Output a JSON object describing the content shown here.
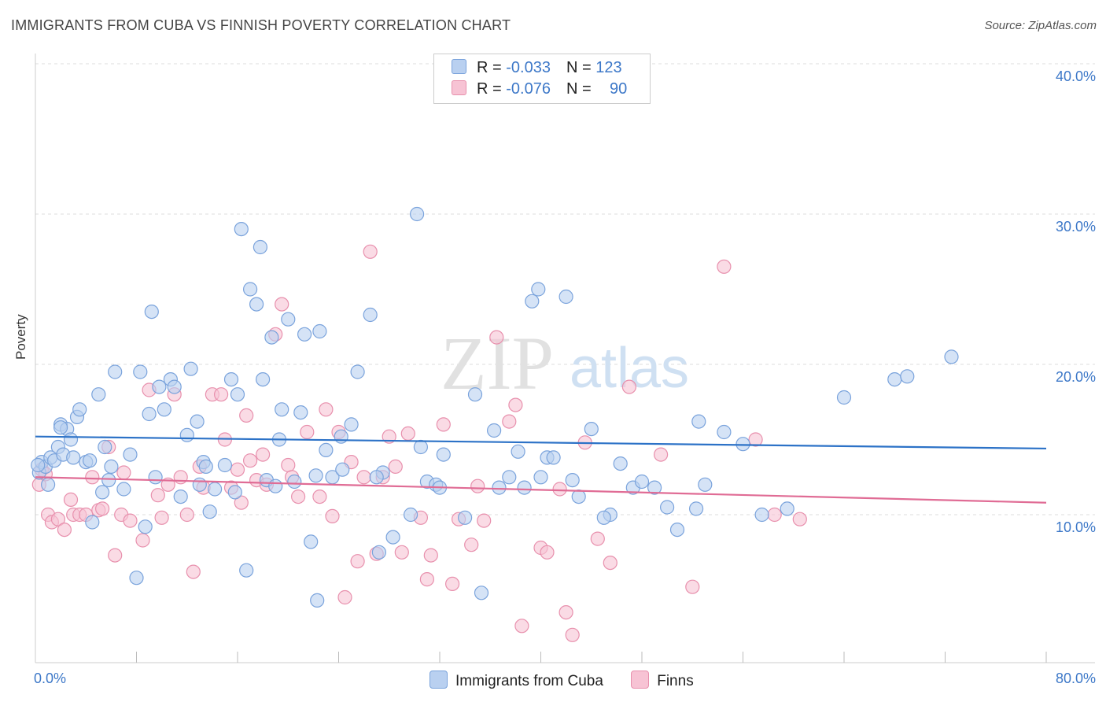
{
  "header": {
    "title": "IMMIGRANTS FROM CUBA VS FINNISH POVERTY CORRELATION CHART",
    "source": "Source: ZipAtlas.com"
  },
  "watermark": {
    "zip": "ZIP",
    "atlas": "atlas"
  },
  "legend": {
    "rows": [
      {
        "r_label": "R = ",
        "r_value": "-0.033",
        "n_label": "N = ",
        "n_value": "123"
      },
      {
        "r_label": "R = ",
        "r_value": "-0.076",
        "n_label": "N = ",
        "n_value": "90"
      }
    ]
  },
  "colors": {
    "series1_fill": "#b9d0f0",
    "series1_edge": "#7aa3dc",
    "series1_line": "#2c72c7",
    "series2_fill": "#f7c3d4",
    "series2_edge": "#e890ad",
    "series2_line": "#e06c95",
    "tick_text": "#3d78c8"
  },
  "chart_data": {
    "type": "scatter",
    "title": "IMMIGRANTS FROM CUBA VS FINNISH POVERTY CORRELATION CHART",
    "xlabel": "",
    "ylabel": "Poverty",
    "xlim": [
      0,
      80
    ],
    "ylim": [
      0,
      42
    ],
    "x_tick_labels": [
      "0.0%",
      "80.0%"
    ],
    "y_ticks": [
      10,
      20,
      30,
      40
    ],
    "y_tick_labels": [
      "10.0%",
      "20.0%",
      "30.0%",
      "40.0%"
    ],
    "grid": true,
    "legend_position": "top-center",
    "series": [
      {
        "name": "Immigrants from Cuba",
        "r": -0.033,
        "n": 123,
        "trend": {
          "x": [
            0,
            80
          ],
          "y": [
            15.2,
            14.4
          ]
        },
        "x": [
          0.3,
          0.5,
          0.8,
          1.0,
          1.2,
          1.5,
          1.8,
          2.0,
          2.2,
          2.5,
          2.8,
          3.0,
          3.3,
          3.5,
          4.0,
          4.5,
          5.0,
          5.3,
          5.5,
          5.8,
          6.0,
          6.3,
          7.0,
          7.5,
          8.0,
          8.3,
          8.7,
          9.2,
          9.5,
          9.8,
          10.2,
          10.7,
          11.0,
          11.5,
          12.0,
          12.3,
          12.8,
          13.3,
          13.5,
          13.8,
          14.2,
          15.0,
          15.5,
          16.0,
          16.3,
          16.7,
          17.0,
          17.5,
          17.8,
          18.3,
          18.7,
          19.0,
          19.3,
          19.5,
          20.0,
          20.5,
          21.0,
          21.3,
          21.8,
          22.3,
          22.5,
          23.0,
          23.5,
          24.2,
          25.0,
          25.5,
          26.5,
          27.2,
          27.5,
          28.3,
          29.7,
          30.2,
          30.5,
          31.0,
          31.7,
          32.3,
          34.0,
          34.8,
          35.3,
          36.3,
          36.7,
          37.5,
          38.2,
          38.7,
          39.3,
          39.8,
          40.5,
          41.0,
          42.0,
          42.5,
          43.0,
          44.0,
          45.5,
          46.3,
          47.3,
          48.0,
          50.0,
          50.8,
          52.3,
          52.5,
          53.0,
          54.5,
          56.0,
          57.5,
          59.5,
          64.0,
          68.0,
          69.0,
          72.5,
          0.2,
          2.0,
          4.3,
          9.0,
          13.0,
          15.8,
          18.0,
          22.2,
          24.3,
          27.0,
          32.0,
          40.0,
          45.0,
          49.0
        ],
        "y": [
          12.8,
          13.5,
          13.2,
          12.0,
          13.8,
          13.6,
          14.5,
          16.0,
          14.0,
          15.7,
          15.0,
          13.8,
          16.5,
          17.0,
          13.5,
          9.5,
          18.0,
          11.5,
          14.5,
          12.3,
          13.2,
          19.5,
          11.7,
          14.0,
          5.8,
          19.5,
          9.2,
          23.5,
          12.5,
          18.5,
          17.0,
          19.0,
          18.5,
          11.2,
          15.3,
          19.7,
          16.2,
          13.5,
          13.2,
          10.2,
          11.7,
          13.3,
          19.0,
          18.0,
          29.0,
          6.3,
          25.0,
          24.0,
          27.8,
          12.3,
          21.8,
          11.9,
          15.0,
          17.0,
          23.0,
          12.2,
          16.8,
          22.0,
          8.2,
          4.3,
          22.2,
          14.3,
          12.5,
          15.2,
          16.0,
          19.5,
          23.3,
          7.5,
          12.8,
          8.5,
          10.0,
          30.0,
          14.5,
          12.2,
          12.0,
          14.0,
          9.8,
          18.0,
          4.8,
          15.6,
          11.8,
          12.5,
          14.2,
          11.8,
          24.2,
          25.0,
          13.8,
          13.8,
          24.5,
          12.3,
          11.2,
          15.7,
          10.0,
          13.4,
          11.8,
          12.2,
          10.5,
          9.0,
          10.4,
          16.2,
          12.0,
          15.5,
          14.7,
          10.0,
          10.4,
          17.8,
          19.0,
          19.2,
          20.5,
          13.3,
          15.8,
          13.6,
          16.7,
          12.0,
          11.5,
          19.0,
          12.6,
          13.0,
          12.5,
          11.8,
          12.5,
          9.8,
          11.8
        ]
      },
      {
        "name": "Finns",
        "r": -0.076,
        "n": 90,
        "trend": {
          "x": [
            0,
            80
          ],
          "y": [
            12.5,
            10.8
          ]
        },
        "x": [
          0.3,
          0.5,
          0.8,
          1.0,
          1.3,
          1.8,
          2.3,
          2.8,
          3.0,
          3.5,
          4.0,
          4.5,
          5.0,
          5.3,
          5.8,
          6.3,
          6.8,
          7.0,
          7.5,
          8.5,
          9.0,
          9.7,
          10.0,
          10.5,
          11.0,
          11.5,
          12.0,
          12.5,
          13.0,
          13.3,
          14.0,
          14.7,
          15.0,
          15.5,
          16.0,
          16.3,
          16.7,
          17.0,
          17.5,
          18.0,
          18.3,
          19.0,
          19.5,
          20.0,
          20.3,
          20.8,
          21.5,
          22.5,
          23.0,
          23.5,
          24.0,
          24.5,
          25.0,
          25.5,
          26.0,
          26.5,
          27.0,
          27.5,
          28.0,
          28.5,
          29.0,
          29.5,
          30.5,
          31.0,
          31.3,
          32.3,
          33.0,
          33.5,
          34.5,
          35.0,
          35.5,
          36.5,
          37.5,
          38.0,
          38.5,
          40.0,
          40.5,
          41.5,
          42.0,
          42.5,
          43.5,
          44.5,
          45.5,
          47.0,
          49.5,
          52.0,
          54.5,
          57.0,
          58.5,
          60.5
        ],
        "y": [
          12.0,
          13.0,
          12.7,
          10.0,
          9.5,
          9.7,
          9.0,
          11.0,
          10.0,
          10.0,
          10.0,
          12.5,
          10.3,
          10.4,
          14.5,
          7.3,
          10.0,
          12.8,
          9.6,
          8.3,
          18.3,
          11.3,
          9.8,
          12.0,
          18.0,
          12.5,
          10.0,
          6.2,
          13.2,
          11.8,
          18.0,
          18.0,
          15.0,
          11.8,
          13.0,
          10.8,
          16.6,
          13.6,
          12.3,
          14.0,
          12.0,
          22.0,
          24.0,
          13.3,
          12.5,
          11.2,
          15.5,
          11.2,
          17.0,
          9.9,
          15.5,
          4.5,
          13.5,
          6.9,
          12.5,
          27.5,
          7.4,
          12.5,
          15.2,
          13.2,
          7.5,
          15.4,
          9.8,
          5.7,
          7.3,
          16.0,
          5.4,
          9.7,
          8.0,
          11.9,
          9.6,
          21.8,
          16.2,
          17.3,
          2.6,
          7.8,
          7.5,
          11.7,
          3.5,
          2.0,
          14.8,
          8.4,
          6.8,
          18.5,
          14.0,
          5.2,
          26.5,
          15.0,
          10.0,
          9.7
        ]
      }
    ]
  },
  "bottom_legend": {
    "items": [
      "Immigrants from Cuba",
      "Finns"
    ]
  }
}
